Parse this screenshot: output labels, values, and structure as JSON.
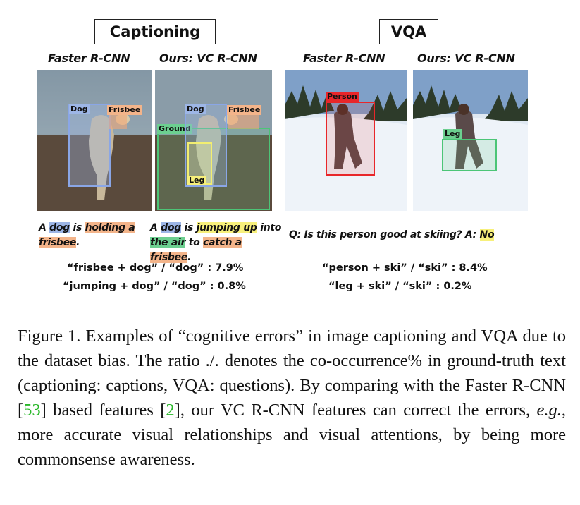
{
  "sections": {
    "captioning": "Captioning",
    "vqa": "VQA"
  },
  "columns": {
    "faster_1": "Faster R-CNN",
    "ours_1": "Ours: VC R-CNN",
    "faster_2": "Faster R-CNN",
    "ours_2": "Ours: VC R-CNN"
  },
  "box_labels": {
    "dog": "Dog",
    "frisbee": "Frisbee",
    "ground": "Ground",
    "leg": "Leg",
    "person": "Person"
  },
  "captions": {
    "faster": {
      "a": "A",
      "dog": "dog",
      "is": "is",
      "holding": "holding a",
      "frisbee": "frisbee",
      "dot": "."
    },
    "ours": {
      "a": "A",
      "dog": "dog",
      "is": "is",
      "jumping": "jumping up",
      "into": "into",
      "air": "the air",
      "to": "to",
      "catch": "catch a frisbee",
      "dot": "."
    },
    "vqa": {
      "question": "Q: Is this person good at skiing?",
      "a_label": "A:",
      "answer": "No"
    }
  },
  "stats": {
    "cap_1": "“frisbee + dog” / “dog” : 7.9%",
    "cap_2": "“jumping + dog” / “dog” : 0.8%",
    "vqa_1": "“person + ski” / “ski” : 8.4%",
    "vqa_2": "“leg + ski” / “ski” : 0.2%"
  },
  "figure_caption": {
    "p1": "Figure 1. Examples of “cognitive errors” in image captioning and VQA due to the dataset bias. The ratio ./. denotes the co-occurrence% in ground-truth text (captioning: captions, VQA: questions). By comparing with the Faster R-CNN [",
    "ref1": "53",
    "p2": "] based features [",
    "ref2": "2",
    "p3": "], our VC R-CNN features can correct the errors, ",
    "eg": "e.g.",
    "p4": ", more accurate visual relationships and visual attentions, by being more commonsense awareness."
  },
  "colors": {
    "blue_box": "#8aa6e6",
    "orange_box": "#f2a878",
    "yellow_box": "#f2ee70",
    "green_box": "#4cc577",
    "red_box": "#e8262a"
  }
}
